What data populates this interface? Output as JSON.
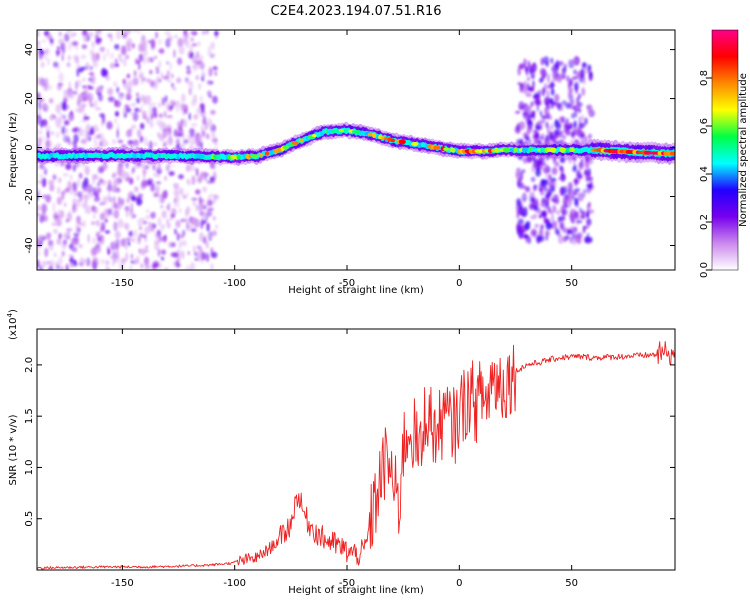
{
  "figure": {
    "title": "C2E4.2023.194.07.51.R16"
  },
  "colors": {
    "snr_line": "#ee2222",
    "axis": "#000000",
    "background": "#ffffff"
  },
  "chart_data": [
    {
      "type": "heatmap",
      "title": "C2E4.2023.194.07.51.R16",
      "xlabel": "Height of straight line (km)",
      "ylabel": "Frequency (Hz)",
      "xlim": [
        -188,
        96
      ],
      "ylim": [
        -50,
        48
      ],
      "xticks": [
        -150,
        -100,
        -50,
        0,
        50
      ],
      "yticks": [
        -40,
        -20,
        0,
        20,
        40
      ],
      "colorbar": {
        "label": "Normalized spectral amplitude",
        "range": [
          0.0,
          1.0
        ],
        "ticks": [
          0.0,
          0.2,
          0.4,
          0.6,
          0.8
        ],
        "tick_labels": [
          "0.0",
          "0.2",
          "0.4",
          "0.6",
          "0.8"
        ],
        "colormap": [
          "#ffffff",
          "#cc88ee",
          "#7700ee",
          "#2200ff",
          "#00ffff",
          "#00ff44",
          "#ffff00",
          "#ff8800",
          "#ff0000",
          "#ff0088"
        ]
      },
      "ridge": {
        "x": [
          -188,
          -150,
          -120,
          -100,
          -90,
          -80,
          -70,
          -60,
          -50,
          -40,
          -30,
          -20,
          -10,
          0,
          10,
          20,
          30,
          40,
          50,
          60,
          70,
          80,
          96
        ],
        "y": [
          -3.5,
          -3.2,
          -3.5,
          -4.0,
          -3.5,
          -1.0,
          3.0,
          6.5,
          7.0,
          5.5,
          3.0,
          1.5,
          0.0,
          -1.5,
          -1.5,
          -1.0,
          -1.0,
          -1.0,
          -1.0,
          -1.0,
          -1.5,
          -2.0,
          -2.5
        ]
      },
      "noise_regions": [
        {
          "x_range": [
            -188,
            -108
          ],
          "y_range": [
            -50,
            48
          ]
        },
        {
          "x_range": [
            26,
            59
          ],
          "y_range": [
            -38,
            36
          ]
        }
      ]
    },
    {
      "type": "line",
      "xlabel": "Height of straight line (km)",
      "ylabel": "SNR (10 * v/v)",
      "y_scale_label": "(x10",
      "y_scale_exponent": "4",
      "y_scale_suffix": ")",
      "xlim": [
        -188,
        96
      ],
      "ylim": [
        0,
        2.35
      ],
      "xticks": [
        -150,
        -100,
        -50,
        0,
        50
      ],
      "yticks": [
        0.5,
        1.0,
        1.5,
        2.0
      ],
      "ytick_labels": [
        "0.5",
        "1.0",
        "1.5",
        "2.0"
      ],
      "series": [
        {
          "x": [
            -188,
            -160,
            -140,
            -120,
            -110,
            -100,
            -95,
            -90,
            -85,
            -80,
            -75,
            -72,
            -70,
            -67,
            -63,
            -60,
            -55,
            -50,
            -45,
            -42,
            -40,
            -37,
            -35,
            -32,
            -30,
            -27,
            -25,
            -22,
            -20,
            -17,
            -15,
            -12,
            -10,
            -7,
            -5,
            -2,
            0,
            3,
            5,
            8,
            10,
            12,
            14,
            17,
            20,
            23,
            26,
            30,
            35,
            40,
            45,
            50,
            55,
            60,
            70,
            80,
            88,
            92,
            96
          ],
          "y": [
            0.02,
            0.03,
            0.03,
            0.04,
            0.05,
            0.07,
            0.1,
            0.12,
            0.2,
            0.3,
            0.45,
            0.75,
            0.6,
            0.45,
            0.35,
            0.3,
            0.25,
            0.18,
            0.15,
            0.2,
            0.4,
            0.7,
            0.9,
            1.1,
            0.9,
            0.6,
            1.2,
            1.4,
            1.3,
            1.1,
            1.6,
            1.4,
            1.3,
            1.5,
            1.45,
            1.4,
            1.55,
            1.65,
            1.7,
            1.6,
            1.75,
            1.6,
            1.85,
            1.85,
            1.8,
            1.9,
            1.95,
            2.0,
            2.02,
            2.05,
            2.07,
            2.08,
            2.08,
            2.07,
            2.08,
            2.09,
            2.1,
            2.12,
            2.1
          ]
        }
      ]
    }
  ]
}
